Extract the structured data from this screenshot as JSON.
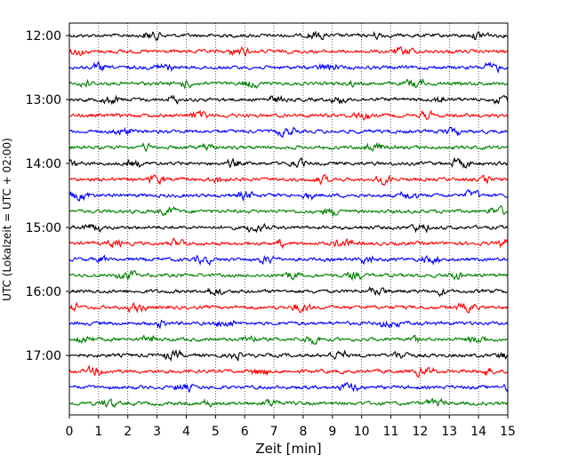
{
  "chart_data": {
    "type": "line",
    "title": "",
    "xlabel": "Zeit  [min]",
    "ylabel": "UTC (Lokalzeit = UTC + 02:00)",
    "xlim": [
      0,
      15
    ],
    "x_ticks": [
      "0",
      "1",
      "2",
      "3",
      "4",
      "5",
      "6",
      "7",
      "8",
      "9",
      "10",
      "11",
      "12",
      "13",
      "14",
      "15"
    ],
    "y_ticks": [
      "12:00",
      "13:00",
      "14:00",
      "15:00",
      "16:00",
      "17:00"
    ],
    "grid": "vertical dotted",
    "trace_interval_min": 15,
    "trace_colors": [
      "#000000",
      "#ff0000",
      "#0000ff",
      "#008000"
    ],
    "traces": [
      {
        "start": "12:00"
      },
      {
        "start": "12:15"
      },
      {
        "start": "12:30"
      },
      {
        "start": "12:45"
      },
      {
        "start": "13:00"
      },
      {
        "start": "13:15"
      },
      {
        "start": "13:30"
      },
      {
        "start": "13:45"
      },
      {
        "start": "14:00"
      },
      {
        "start": "14:15"
      },
      {
        "start": "14:30"
      },
      {
        "start": "14:45"
      },
      {
        "start": "15:00"
      },
      {
        "start": "15:15"
      },
      {
        "start": "15:30"
      },
      {
        "start": "15:45"
      },
      {
        "start": "16:00"
      },
      {
        "start": "16:15"
      },
      {
        "start": "16:30"
      },
      {
        "start": "16:45"
      },
      {
        "start": "17:00"
      },
      {
        "start": "17:15"
      },
      {
        "start": "17:30"
      },
      {
        "start": "17:45"
      }
    ]
  }
}
